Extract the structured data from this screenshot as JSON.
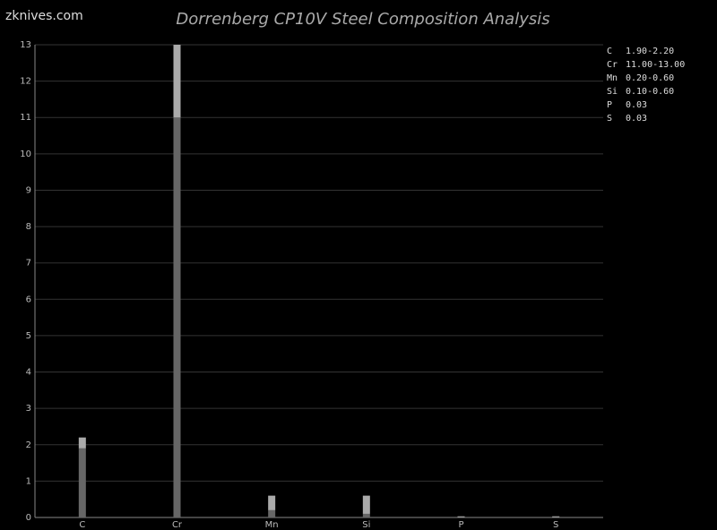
{
  "chart_data": {
    "type": "range_bar",
    "title": "Dorrenberg CP10V Steel Composition Analysis",
    "watermark": "zknives.com",
    "categories": [
      "C",
      "Cr",
      "Mn",
      "Si",
      "P",
      "S"
    ],
    "low": [
      1.9,
      11,
      0.2,
      0.1,
      0.03,
      0.03
    ],
    "high": [
      2.2,
      13,
      0.6,
      0.6,
      0.03,
      0.03
    ],
    "range_labels": [
      "1.90-2.20",
      "11.00-13.00",
      "0.20-0.60",
      "0.10-0.60",
      "0.03",
      "0.03"
    ],
    "low_color": "#666666",
    "high_color": "#aaaaaa",
    "ylim": [
      0,
      13
    ],
    "yticks": [
      0,
      1,
      2,
      3,
      4,
      5,
      6,
      7,
      8,
      9,
      10,
      11,
      12,
      13
    ],
    "grid": true,
    "legend": "top-right"
  }
}
